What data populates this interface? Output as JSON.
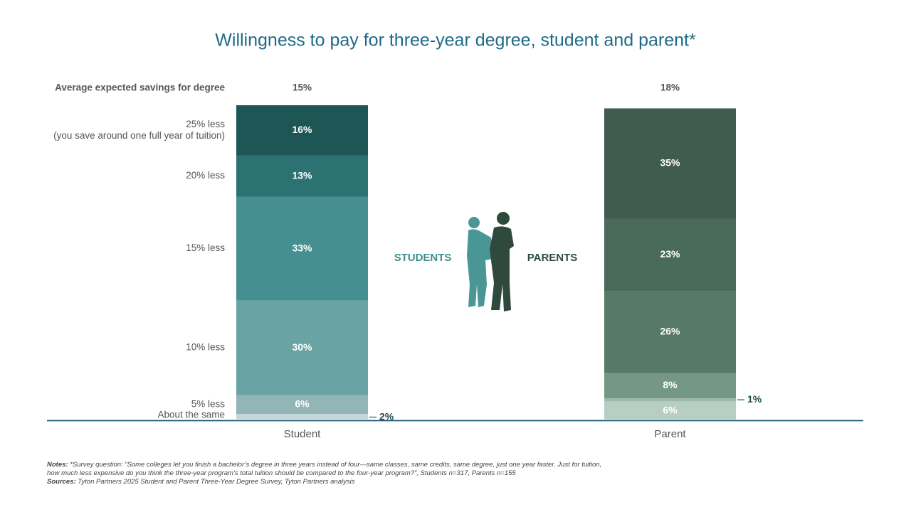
{
  "chart_data": {
    "type": "stacked_bar",
    "title": "Willingness to pay for three-year degree, student and parent*",
    "categories": [
      "Student",
      "Parent"
    ],
    "ylim": [
      0,
      100
    ],
    "savings": {
      "label": "Average expected savings for degree",
      "values": [
        15,
        18
      ],
      "value_labels": [
        "15%",
        "18%"
      ]
    },
    "series": [
      {
        "name": "About the same",
        "colors": [
          "#c5d8d9",
          "#b7cec5"
        ],
        "values": [
          2,
          6
        ],
        "value_labels": [
          "2%",
          "6%"
        ]
      },
      {
        "name": "5% less",
        "colors": [
          "#93b5b6",
          "#9dbaa9"
        ],
        "values": [
          6,
          1
        ],
        "value_labels": [
          "6%",
          "1%"
        ]
      },
      {
        "name": "10% less",
        "colors": [
          "#6aa3a4",
          "#759884"
        ],
        "values": [
          30,
          8
        ],
        "value_labels": [
          "30%",
          "8%"
        ]
      },
      {
        "name": "15% less",
        "colors": [
          "#458f90",
          "#567a66"
        ],
        "values": [
          33,
          26
        ],
        "value_labels": [
          "33%",
          "26%"
        ]
      },
      {
        "name": "20% less",
        "colors": [
          "#2d7272",
          "#4a6a5a"
        ],
        "values": [
          13,
          23
        ],
        "value_labels": [
          "13%",
          "23%"
        ]
      },
      {
        "name": "25% less",
        "detail": "(you save around one full year of tuition)",
        "colors": [
          "#1e5656",
          "#3f5c4e"
        ],
        "values": [
          16,
          35
        ],
        "value_labels": [
          "16%",
          "35%"
        ]
      }
    ],
    "group_labels": [
      "STUDENTS",
      "PARENTS"
    ],
    "notes": {
      "label": "Notes:",
      "text": "*Survey question: “Some colleges let you finish a bachelor’s degree in three years instead of four—same classes, same credits, same degree, just one year faster. Just for tuition, how much less expensive do you think the three-year program’s total tuition should be compared to the four-year program?”, Students n=317, Parents n=155"
    },
    "sources": {
      "label": "Sources:",
      "text": "Tyton Partners 2025 Student and Parent Three-Year Degree Survey, Tyton Partners analysis"
    }
  }
}
